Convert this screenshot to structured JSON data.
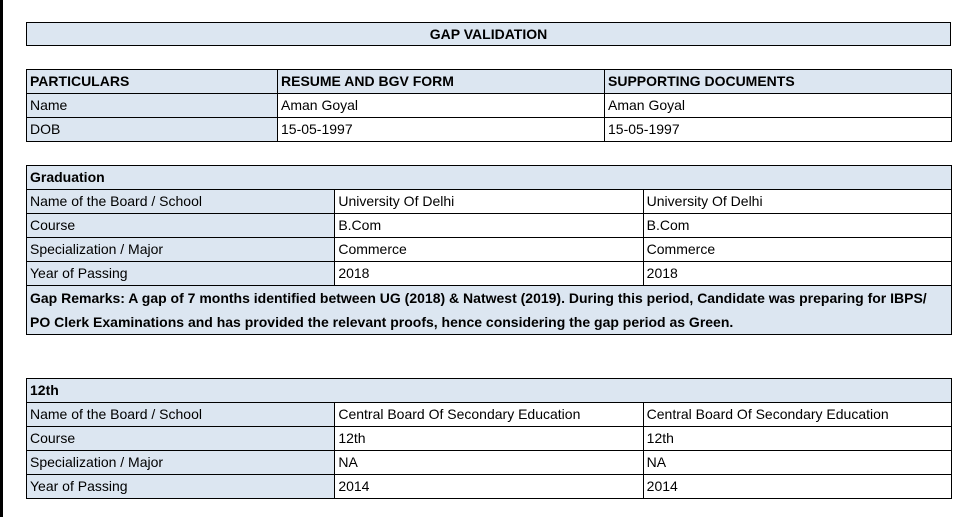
{
  "title": "GAP VALIDATION",
  "basic": {
    "headers": [
      "PARTICULARS",
      "RESUME AND BGV FORM",
      "SUPPORTING DOCUMENTS"
    ],
    "rows": [
      [
        "Name",
        "Aman Goyal",
        "Aman Goyal"
      ],
      [
        "DOB",
        "15-05-1997",
        "15-05-1997"
      ]
    ]
  },
  "graduation": {
    "heading": "Graduation",
    "rows": [
      [
        "Name of the Board / School",
        "University Of Delhi",
        "University Of Delhi"
      ],
      [
        "Course",
        "B.Com",
        "B.Com"
      ],
      [
        "Specialization / Major",
        "Commerce",
        "Commerce"
      ],
      [
        "Year of Passing",
        "2018",
        "2018"
      ]
    ],
    "remarks": "Gap Remarks: A gap of 7 months identified between UG (2018) & Natwest (2019). During this period, Candidate was preparing for IBPS/ PO Clerk Examinations and has provided the relevant proofs, hence considering the gap period as Green."
  },
  "twelfth": {
    "heading": "12th",
    "rows": [
      [
        "Name of the Board / School",
        "Central Board Of Secondary Education",
        "Central Board Of Secondary Education"
      ],
      [
        "Course",
        "12th",
        "12th"
      ],
      [
        "Specialization / Major",
        "NA",
        "NA"
      ],
      [
        "Year of Passing",
        "2014",
        "2014"
      ]
    ]
  }
}
